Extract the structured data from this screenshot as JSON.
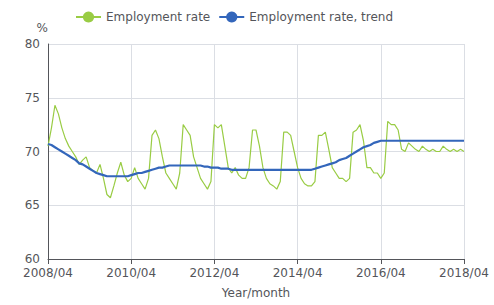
{
  "chart_data": {
    "type": "line",
    "xlabel": "Year/month",
    "ylabel": "%",
    "categories": [
      "2008/04",
      null,
      null,
      null,
      null,
      null,
      null,
      null,
      null,
      null,
      null,
      null,
      null,
      null,
      null,
      null,
      null,
      null,
      null,
      null,
      null,
      null,
      null,
      null,
      "2010/04",
      null,
      null,
      null,
      null,
      null,
      null,
      null,
      null,
      null,
      null,
      null,
      null,
      null,
      null,
      null,
      null,
      null,
      null,
      null,
      null,
      null,
      null,
      null,
      "2012/04",
      null,
      null,
      null,
      null,
      null,
      null,
      null,
      null,
      null,
      null,
      null,
      null,
      null,
      null,
      null,
      null,
      null,
      null,
      null,
      null,
      null,
      null,
      null,
      "2014/04",
      null,
      null,
      null,
      null,
      null,
      null,
      null,
      null,
      null,
      null,
      null,
      null,
      null,
      null,
      null,
      null,
      null,
      null,
      null,
      null,
      null,
      null,
      null,
      "2016/04",
      null,
      null,
      null,
      null,
      null,
      null,
      null,
      null,
      null,
      null,
      null,
      null,
      null,
      null,
      null,
      null,
      null,
      null,
      null,
      null,
      null,
      null,
      null,
      "2018/04"
    ],
    "series": [
      {
        "name": "Employment rate",
        "color": "#99cc44",
        "values": [
          70.5,
          72.2,
          74.3,
          73.5,
          72.2,
          71.2,
          70.5,
          70.0,
          69.5,
          68.8,
          69.2,
          69.5,
          68.5,
          68.2,
          68.0,
          68.8,
          67.5,
          66.0,
          65.7,
          66.8,
          68.0,
          69.0,
          67.8,
          67.2,
          67.5,
          68.5,
          67.5,
          67.0,
          66.5,
          67.5,
          71.5,
          72.0,
          71.2,
          69.5,
          68.0,
          67.5,
          67.0,
          66.5,
          68.0,
          72.5,
          72.0,
          71.5,
          69.5,
          68.5,
          67.5,
          67.0,
          66.5,
          67.2,
          72.5,
          72.2,
          72.5,
          70.5,
          68.5,
          68.0,
          68.5,
          67.8,
          67.5,
          67.5,
          68.5,
          72.0,
          72.0,
          70.5,
          68.5,
          67.5,
          67.0,
          66.8,
          66.5,
          67.2,
          71.8,
          71.8,
          71.5,
          70.0,
          68.5,
          67.5,
          67.0,
          66.8,
          66.8,
          67.2,
          71.5,
          71.5,
          71.8,
          70.2,
          68.5,
          68.0,
          67.5,
          67.5,
          67.2,
          67.5,
          71.8,
          72.0,
          72.5,
          71.0,
          68.5,
          68.5,
          68.0,
          68.0,
          67.5,
          68.0,
          72.8,
          72.5,
          72.5,
          72.0,
          70.2,
          70.0,
          70.8,
          70.5,
          70.2,
          70.0,
          70.5,
          70.2,
          70.0,
          70.2,
          70.0,
          70.0,
          70.5,
          70.2,
          70.0,
          70.2,
          70.0,
          70.2,
          70.0
        ]
      },
      {
        "name": "Employment rate, trend",
        "color": "#3366bb",
        "values": [
          70.7,
          70.6,
          70.4,
          70.2,
          70.0,
          69.8,
          69.6,
          69.4,
          69.2,
          68.9,
          68.8,
          68.6,
          68.4,
          68.2,
          68.0,
          67.9,
          67.8,
          67.7,
          67.7,
          67.7,
          67.7,
          67.7,
          67.7,
          67.7,
          67.8,
          67.9,
          68.0,
          68.0,
          68.1,
          68.2,
          68.3,
          68.4,
          68.5,
          68.5,
          68.6,
          68.7,
          68.7,
          68.7,
          68.7,
          68.7,
          68.7,
          68.7,
          68.7,
          68.7,
          68.7,
          68.6,
          68.6,
          68.5,
          68.5,
          68.5,
          68.4,
          68.4,
          68.4,
          68.3,
          68.3,
          68.3,
          68.3,
          68.3,
          68.3,
          68.3,
          68.3,
          68.3,
          68.3,
          68.3,
          68.3,
          68.3,
          68.3,
          68.3,
          68.3,
          68.3,
          68.3,
          68.3,
          68.3,
          68.3,
          68.3,
          68.3,
          68.3,
          68.4,
          68.5,
          68.6,
          68.7,
          68.8,
          68.9,
          69.0,
          69.2,
          69.3,
          69.4,
          69.6,
          69.8,
          70.0,
          70.2,
          70.4,
          70.5,
          70.6,
          70.8,
          70.9,
          71.0,
          71.0,
          71.0,
          71.0,
          71.0,
          71.0,
          71.0,
          71.0,
          71.0,
          71.0,
          71.0,
          71.0,
          71.0,
          71.0,
          71.0,
          71.0,
          71.0,
          71.0,
          71.0,
          71.0,
          71.0,
          71.0,
          71.0,
          71.0,
          71.0
        ]
      }
    ],
    "ylim": [
      60,
      80
    ],
    "yticks": [
      60,
      65,
      70,
      75,
      80
    ],
    "grid": true,
    "legend": "upper left"
  }
}
